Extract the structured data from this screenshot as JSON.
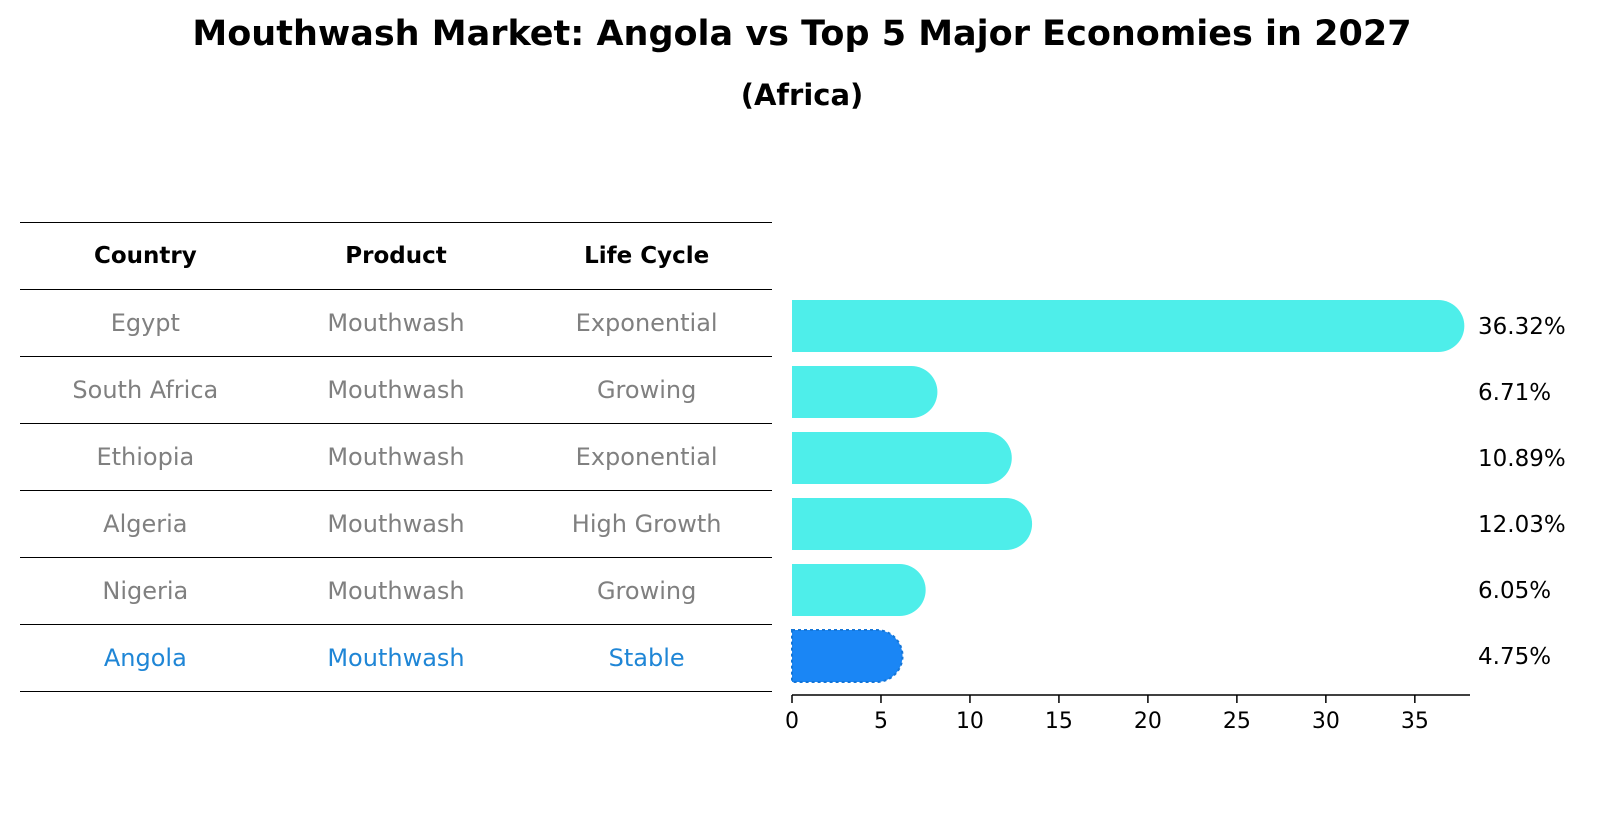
{
  "title": "Mouthwash Market: Angola vs Top 5 Major Economies in 2027",
  "subtitle": "(Africa)",
  "table": {
    "headers": [
      "Country",
      "Product",
      "Life Cycle"
    ],
    "rows": [
      [
        "Egypt",
        "Mouthwash",
        "Exponential"
      ],
      [
        "South Africa",
        "Mouthwash",
        "Growing"
      ],
      [
        "Ethiopia",
        "Mouthwash",
        "Exponential"
      ],
      [
        "Algeria",
        "Mouthwash",
        "High Growth"
      ],
      [
        "Nigeria",
        "Mouthwash",
        "Growing"
      ],
      [
        "Angola",
        "Mouthwash",
        "Stable"
      ]
    ]
  },
  "chart_data": {
    "type": "bar",
    "orientation": "horizontal",
    "categories": [
      "Egypt",
      "South Africa",
      "Ethiopia",
      "Algeria",
      "Nigeria",
      "Angola"
    ],
    "values": [
      36.32,
      6.71,
      10.89,
      12.03,
      6.05,
      4.75
    ],
    "value_labels": [
      "36.32%",
      "6.71%",
      "10.89%",
      "12.03%",
      "6.05%",
      "4.75%"
    ],
    "xticks": [
      0,
      5,
      10,
      15,
      20,
      25,
      30,
      35
    ],
    "xlim": [
      0,
      38.1
    ],
    "highlight": "Angola",
    "colors": {
      "default": "#4eeeea",
      "highlight": "#1a86f5",
      "highlight_text": "#1f86d6",
      "muted_text": "#808080"
    }
  }
}
